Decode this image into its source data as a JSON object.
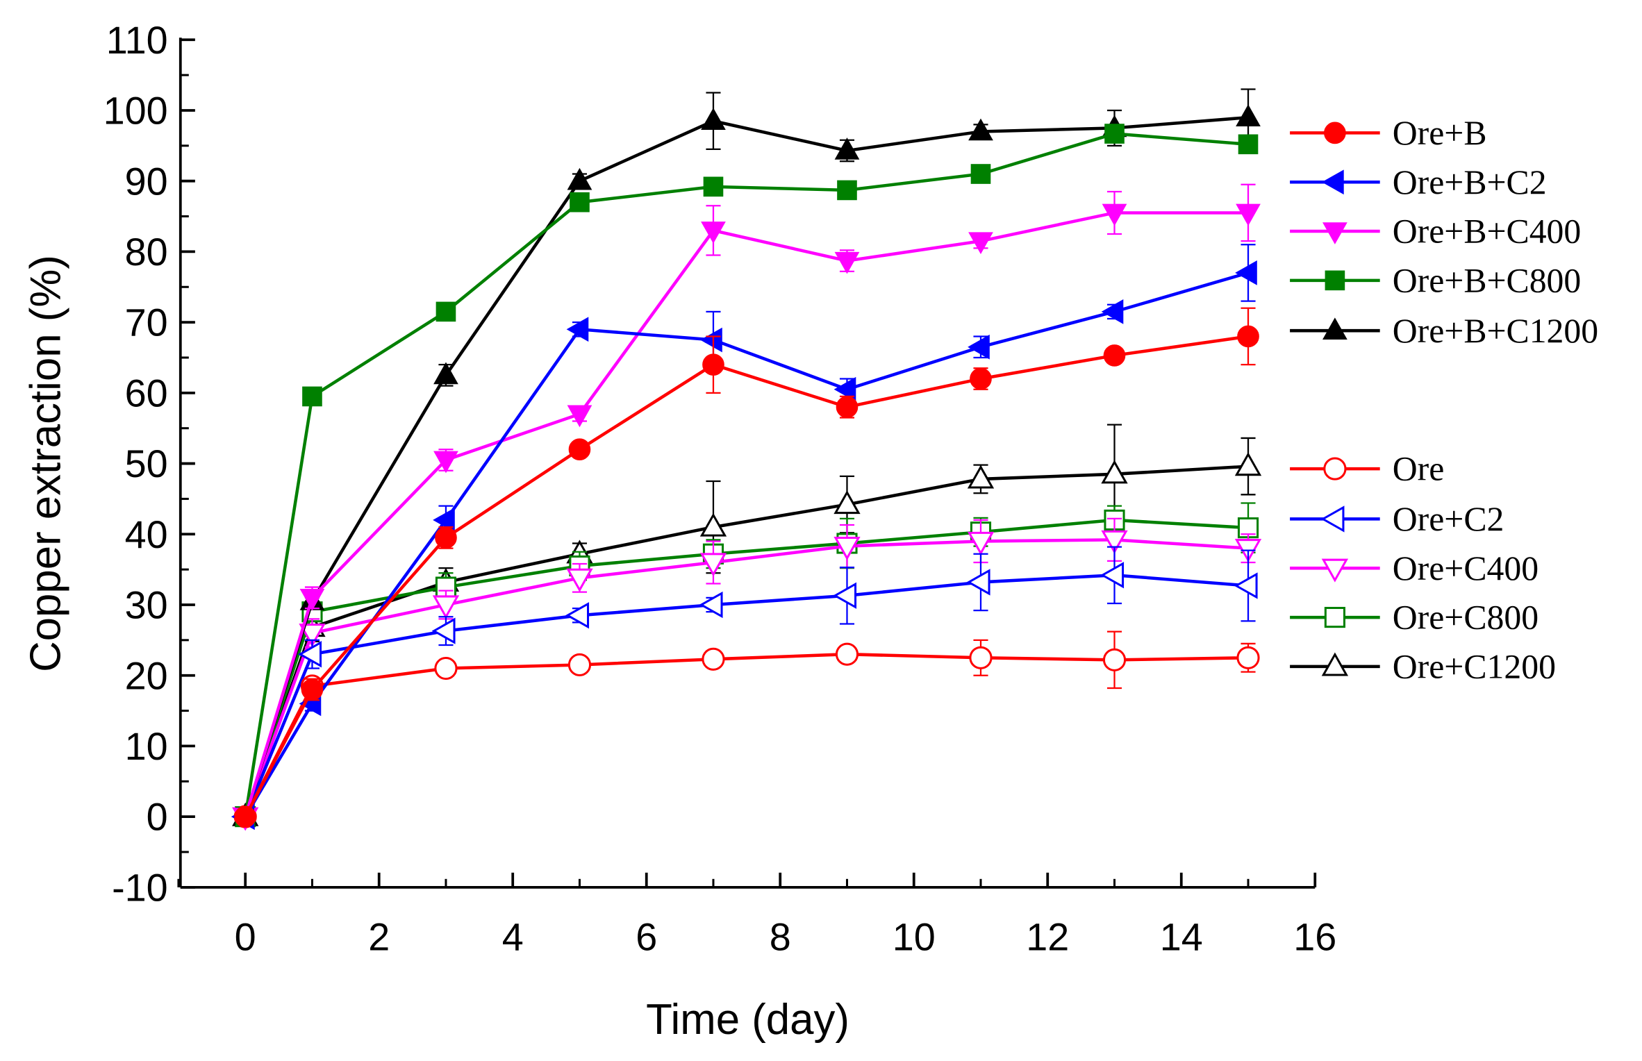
{
  "chart_data": {
    "type": "line",
    "title": "",
    "xlabel": "Time (day)",
    "ylabel": "Copper extraction (%)",
    "xlim": [
      -1,
      16
    ],
    "ylim": [
      -10,
      110
    ],
    "xticks": [
      0,
      2,
      4,
      6,
      8,
      10,
      12,
      14,
      16
    ],
    "yticks": [
      -10,
      0,
      10,
      20,
      30,
      40,
      50,
      60,
      70,
      80,
      90,
      100,
      110
    ],
    "grid": false,
    "legend_placement": "right",
    "x": [
      0,
      1,
      3,
      5,
      7,
      9,
      11,
      13,
      15
    ],
    "series": [
      {
        "name": "Ore+B",
        "color": "#ff0000",
        "marker": "circle",
        "filled": true,
        "values": [
          0,
          18,
          39.5,
          52,
          64,
          58,
          62,
          65.3,
          68
        ],
        "err": [
          0,
          1.5,
          1.5,
          1,
          4,
          1.5,
          1.5,
          1,
          4
        ]
      },
      {
        "name": "Ore+B+C2",
        "color": "#0000ff",
        "marker": "triangle-left",
        "filled": true,
        "values": [
          0,
          16,
          42,
          69,
          67.5,
          60.5,
          66.5,
          71.5,
          77
        ],
        "err": [
          0,
          1,
          2,
          1,
          4,
          1.5,
          1.5,
          1,
          4
        ]
      },
      {
        "name": "Ore+B+C400",
        "color": "#ff00ff",
        "marker": "triangle-down",
        "filled": true,
        "values": [
          0,
          31,
          50.5,
          57,
          83,
          78.7,
          81.5,
          85.5,
          85.5
        ],
        "err": [
          0,
          1.5,
          1.5,
          1,
          3.5,
          1.5,
          1,
          3,
          4
        ]
      },
      {
        "name": "Ore+B+C800",
        "color": "#008000",
        "marker": "square",
        "filled": true,
        "values": [
          0,
          59.5,
          71.5,
          87,
          89.2,
          88.7,
          91,
          96.7,
          95.2
        ],
        "err": [
          0,
          1,
          1,
          1,
          1,
          1,
          1,
          1,
          1
        ]
      },
      {
        "name": "Ore+B+C1200",
        "color": "#000000",
        "marker": "triangle-up",
        "filled": true,
        "values": [
          0,
          30.5,
          62.5,
          90,
          98.5,
          94.3,
          97,
          97.5,
          99
        ],
        "err": [
          0,
          1,
          1.5,
          1,
          4,
          1.5,
          1,
          2.5,
          4
        ]
      },
      {
        "name": "Ore",
        "color": "#ff0000",
        "marker": "circle",
        "filled": false,
        "values": [
          0,
          18.5,
          21,
          21.5,
          22.3,
          23,
          22.5,
          22.2,
          22.5
        ],
        "err": [
          0,
          1,
          1,
          1,
          1,
          0.5,
          2.5,
          4,
          2
        ]
      },
      {
        "name": "Ore+C2",
        "color": "#0000ff",
        "marker": "triangle-left",
        "filled": false,
        "values": [
          0,
          23,
          26.3,
          28.5,
          30,
          31.3,
          33.2,
          34.2,
          32.7
        ],
        "err": [
          0,
          2,
          2,
          1,
          1,
          4,
          4,
          4,
          5
        ]
      },
      {
        "name": "Ore+C400",
        "color": "#ff00ff",
        "marker": "triangle-down",
        "filled": false,
        "values": [
          0,
          26,
          30,
          33.8,
          36,
          38.3,
          39,
          39.2,
          38
        ],
        "err": [
          0,
          2,
          2,
          2,
          3,
          3,
          3,
          3,
          2
        ]
      },
      {
        "name": "Ore+C800",
        "color": "#008000",
        "marker": "square",
        "filled": false,
        "values": [
          0,
          29,
          32.5,
          35.5,
          37.2,
          38.7,
          40.3,
          42,
          40.9
        ],
        "err": [
          0,
          2,
          2,
          2,
          2,
          3.5,
          2,
          2,
          3.5
        ]
      },
      {
        "name": "Ore+C1200",
        "color": "#000000",
        "marker": "triangle-up",
        "filled": false,
        "values": [
          0,
          26.8,
          33.2,
          37.2,
          41,
          44.2,
          47.8,
          48.5,
          49.6
        ],
        "err": [
          0,
          2,
          2,
          1.5,
          6.5,
          4,
          2,
          7,
          4
        ]
      }
    ]
  }
}
